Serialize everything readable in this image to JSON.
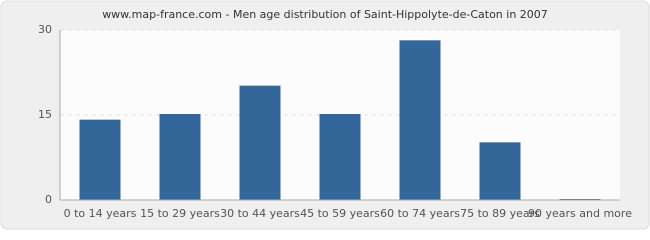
{
  "chart_data": {
    "type": "bar",
    "title": "www.map-france.com - Men age distribution of Saint-Hippolyte-de-Caton in 2007",
    "categories": [
      "0 to 14 years",
      "15 to 29 years",
      "30 to 44 years",
      "45 to 59 years",
      "60 to 74 years",
      "75 to 89 years",
      "90 years and more"
    ],
    "values": [
      14,
      15,
      20,
      15,
      28,
      10,
      0
    ],
    "color": "#336699",
    "ylim": [
      0,
      30
    ],
    "yticks": [
      0,
      15,
      30
    ],
    "grid": true
  }
}
